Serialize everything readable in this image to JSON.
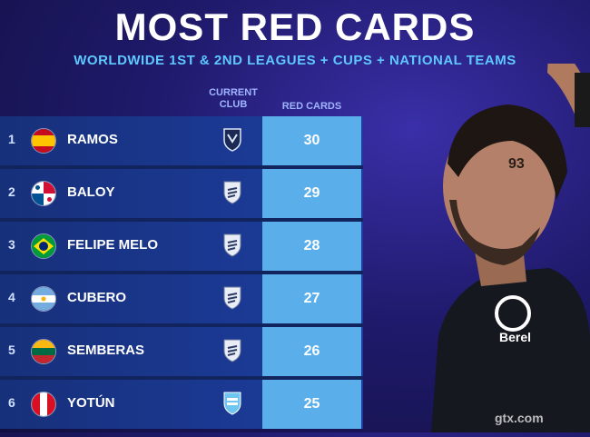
{
  "title": "MOST RED CARDS",
  "subtitle": "WORLDWIDE 1ST & 2ND LEAGUES + CUPS + NATIONAL TEAMS",
  "headers": {
    "club": [
      "CURRENT",
      "CLUB"
    ],
    "cards": "RED CARDS"
  },
  "rows": [
    {
      "rank": "1",
      "name": "RAMOS",
      "cards": "30",
      "flag": "spain-flag-icon",
      "club": "monterrey-crest-icon"
    },
    {
      "rank": "2",
      "name": "BALOY",
      "cards": "29",
      "flag": "panama-flag-icon",
      "club": "shield-crest-icon"
    },
    {
      "rank": "3",
      "name": "FELIPE MELO",
      "cards": "28",
      "flag": "brazil-flag-icon",
      "club": "shield-crest-icon"
    },
    {
      "rank": "4",
      "name": "CUBERO",
      "cards": "27",
      "flag": "argentina-flag-icon",
      "club": "shield-crest-icon"
    },
    {
      "rank": "5",
      "name": "SEMBERAS",
      "cards": "26",
      "flag": "lithuania-flag-icon",
      "club": "shield-crest-icon"
    },
    {
      "rank": "6",
      "name": "YOTÚN",
      "cards": "25",
      "flag": "peru-flag-icon",
      "club": "sporting-cristal-crest-icon"
    }
  ],
  "photo": {
    "shirt_number": "93",
    "sponsor": "Berel"
  },
  "watermark": "gtx.com",
  "colors": {
    "cards_bg": "#5aaeea",
    "row_bg": "#1d3ea0",
    "subtitle": "#5ec8ff"
  }
}
